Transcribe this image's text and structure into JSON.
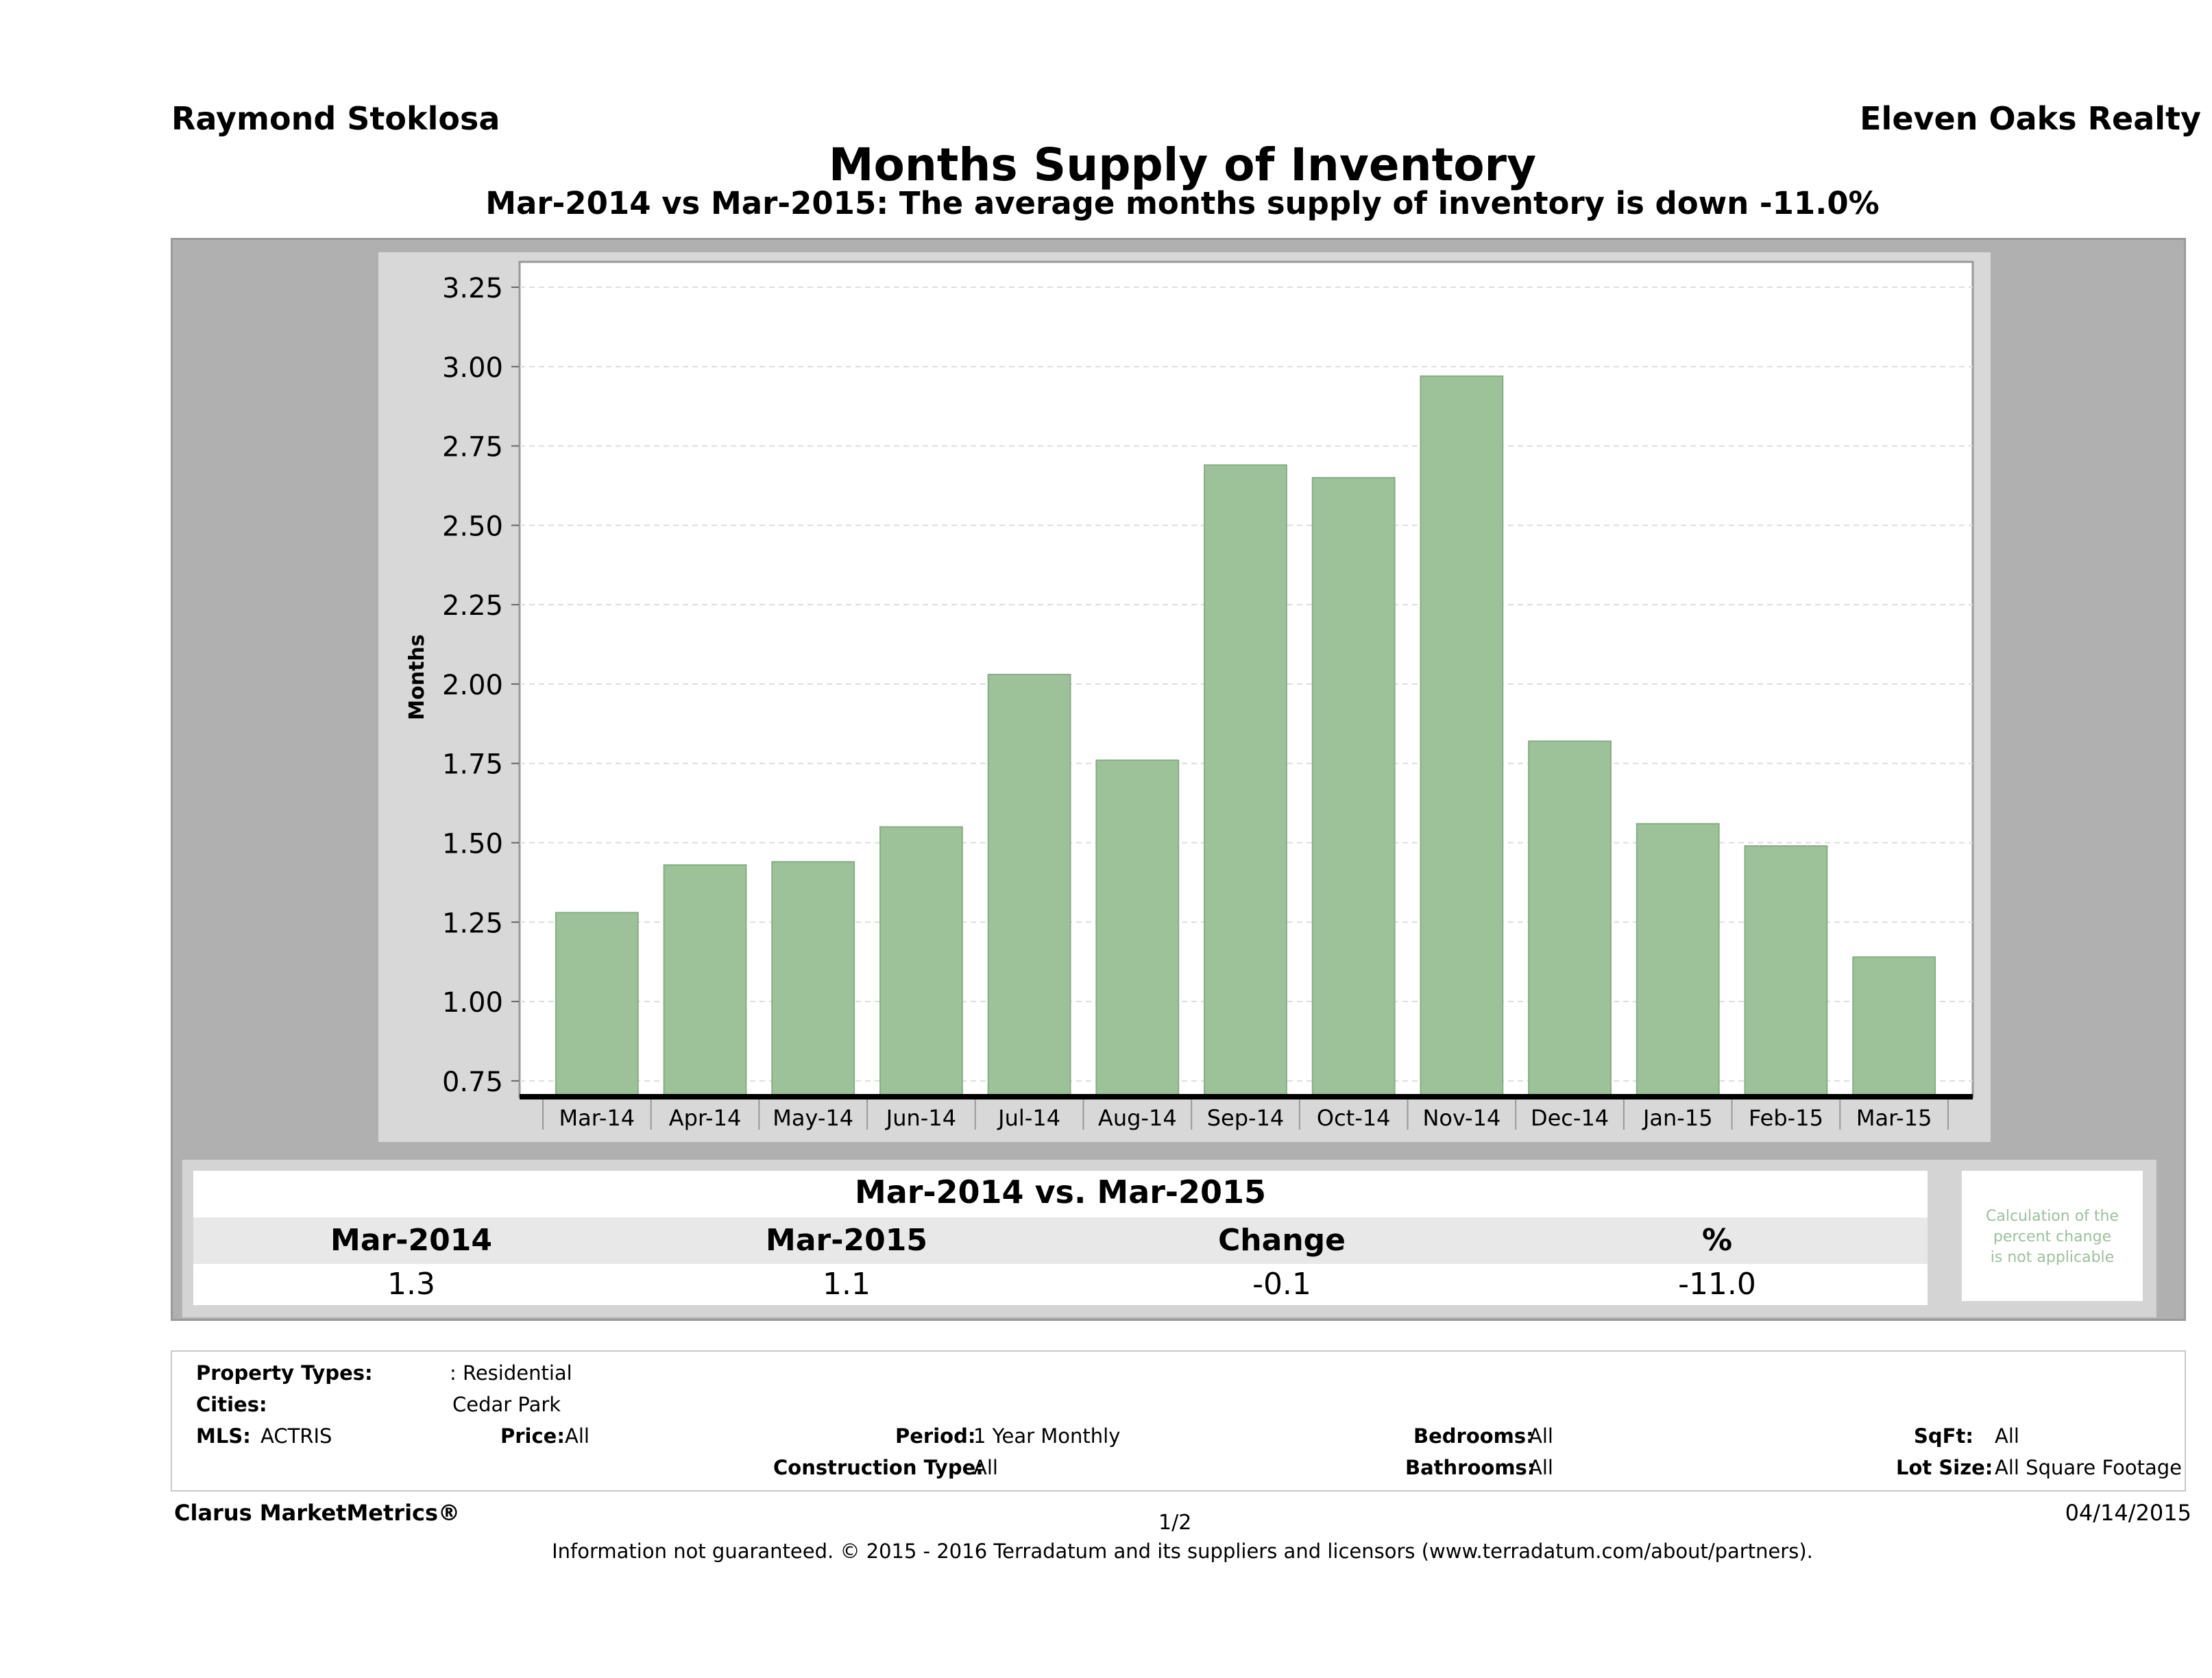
{
  "header": {
    "agent": "Raymond Stoklosa",
    "company": "Eleven Oaks Realty",
    "title": "Months Supply of Inventory",
    "subtitle": "Mar-2014 vs Mar-2015: The average months supply of inventory is down -11.0%"
  },
  "chart_data": {
    "type": "bar",
    "ylabel": "Months",
    "xlabel": "",
    "categories": [
      "Mar-14",
      "Apr-14",
      "May-14",
      "Jun-14",
      "Jul-14",
      "Aug-14",
      "Sep-14",
      "Oct-14",
      "Nov-14",
      "Dec-14",
      "Jan-15",
      "Feb-15",
      "Mar-15"
    ],
    "values": [
      1.28,
      1.43,
      1.44,
      1.55,
      2.03,
      1.76,
      2.69,
      2.65,
      2.97,
      1.82,
      1.56,
      1.49,
      1.14
    ],
    "ylim": [
      0.7,
      3.33
    ],
    "yticks": [
      "0.75",
      "1.00",
      "1.25",
      "1.50",
      "1.75",
      "2.00",
      "2.25",
      "2.50",
      "2.75",
      "3.00",
      "3.25"
    ],
    "grid": true,
    "bar_color": "#9dc29a"
  },
  "summary": {
    "title": "Mar-2014 vs. Mar-2015",
    "headers": [
      "Mar-2014",
      "Mar-2015",
      "Change",
      "%"
    ],
    "values": [
      "1.3",
      "1.1",
      "-0.1",
      "-11.0"
    ],
    "note": [
      "Calculation of the",
      "percent change",
      "is not applicable"
    ]
  },
  "criteria": {
    "property_types_label": "Property Types:",
    "property_types_value": ": Residential",
    "cities_label": "Cities:",
    "cities_value": "Cedar Park",
    "mls_label": "MLS:",
    "mls_value": "ACTRIS",
    "price_label": "Price:",
    "price_value": "All",
    "period_label": "Period:",
    "period_value": "1 Year Monthly",
    "construction_label": "Construction Type:",
    "construction_value": "All",
    "bedrooms_label": "Bedrooms:",
    "bedrooms_value": "All",
    "bathrooms_label": "Bathrooms:",
    "bathrooms_value": "All",
    "sqft_label": "SqFt:",
    "sqft_value": "All",
    "lotsize_label": "Lot Size:",
    "lotsize_value": "All Square Footage"
  },
  "footer": {
    "brand": "Clarus MarketMetrics®",
    "page": "1/2",
    "date": "04/14/2015",
    "disclaimer": "Information not guaranteed. © 2015 - 2016 Terradatum and its suppliers and licensors (www.terradatum.com/about/partners)."
  }
}
